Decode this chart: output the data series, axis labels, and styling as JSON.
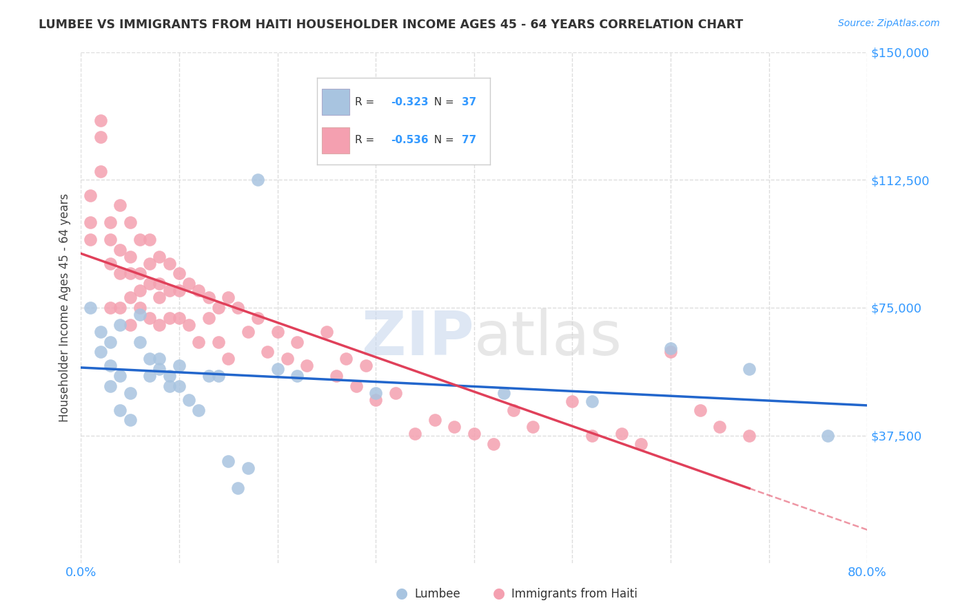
{
  "title": "LUMBEE VS IMMIGRANTS FROM HAITI HOUSEHOLDER INCOME AGES 45 - 64 YEARS CORRELATION CHART",
  "source": "Source: ZipAtlas.com",
  "ylabel": "Householder Income Ages 45 - 64 years",
  "yticks": [
    0,
    37500,
    75000,
    112500,
    150000
  ],
  "ytick_labels": [
    "",
    "$37,500",
    "$75,000",
    "$112,500",
    "$150,000"
  ],
  "xmin": 0.0,
  "xmax": 0.8,
  "ymin": 0,
  "ymax": 150000,
  "lumbee_R": "-0.323",
  "lumbee_N": "37",
  "haiti_R": "-0.536",
  "haiti_N": "77",
  "lumbee_color": "#a8c4e0",
  "haiti_color": "#f4a0b0",
  "lumbee_line_color": "#2266cc",
  "haiti_line_color": "#e0405a",
  "background_color": "#ffffff",
  "grid_color": "#dddddd",
  "watermark_zip": "ZIP",
  "watermark_atlas": "atlas",
  "lumbee_x": [
    0.01,
    0.02,
    0.02,
    0.03,
    0.03,
    0.03,
    0.04,
    0.04,
    0.04,
    0.05,
    0.05,
    0.06,
    0.06,
    0.07,
    0.07,
    0.08,
    0.08,
    0.09,
    0.09,
    0.1,
    0.1,
    0.11,
    0.12,
    0.13,
    0.14,
    0.15,
    0.16,
    0.17,
    0.18,
    0.2,
    0.22,
    0.3,
    0.43,
    0.52,
    0.6,
    0.68,
    0.76
  ],
  "lumbee_y": [
    75000,
    68000,
    62000,
    65000,
    58000,
    52000,
    70000,
    55000,
    45000,
    50000,
    42000,
    73000,
    65000,
    60000,
    55000,
    60000,
    57000,
    55000,
    52000,
    58000,
    52000,
    48000,
    45000,
    55000,
    55000,
    30000,
    22000,
    28000,
    112500,
    57000,
    55000,
    50000,
    50000,
    47500,
    63000,
    57000,
    37500
  ],
  "haiti_x": [
    0.01,
    0.01,
    0.01,
    0.02,
    0.02,
    0.02,
    0.03,
    0.03,
    0.03,
    0.03,
    0.04,
    0.04,
    0.04,
    0.04,
    0.05,
    0.05,
    0.05,
    0.05,
    0.05,
    0.06,
    0.06,
    0.06,
    0.06,
    0.07,
    0.07,
    0.07,
    0.07,
    0.08,
    0.08,
    0.08,
    0.08,
    0.09,
    0.09,
    0.09,
    0.1,
    0.1,
    0.1,
    0.11,
    0.11,
    0.12,
    0.12,
    0.13,
    0.13,
    0.14,
    0.14,
    0.15,
    0.15,
    0.16,
    0.17,
    0.18,
    0.19,
    0.2,
    0.21,
    0.22,
    0.23,
    0.25,
    0.26,
    0.27,
    0.28,
    0.29,
    0.3,
    0.32,
    0.34,
    0.36,
    0.38,
    0.4,
    0.42,
    0.44,
    0.46,
    0.5,
    0.52,
    0.55,
    0.57,
    0.6,
    0.63,
    0.65,
    0.68
  ],
  "haiti_y": [
    100000,
    95000,
    108000,
    130000,
    125000,
    115000,
    100000,
    95000,
    88000,
    75000,
    105000,
    92000,
    85000,
    75000,
    100000,
    90000,
    85000,
    78000,
    70000,
    95000,
    85000,
    80000,
    75000,
    95000,
    88000,
    82000,
    72000,
    90000,
    82000,
    78000,
    70000,
    88000,
    80000,
    72000,
    85000,
    80000,
    72000,
    82000,
    70000,
    80000,
    65000,
    78000,
    72000,
    75000,
    65000,
    78000,
    60000,
    75000,
    68000,
    72000,
    62000,
    68000,
    60000,
    65000,
    58000,
    68000,
    55000,
    60000,
    52000,
    58000,
    48000,
    50000,
    38000,
    42000,
    40000,
    38000,
    35000,
    45000,
    40000,
    47500,
    37500,
    38000,
    35000,
    62000,
    45000,
    40000,
    37500
  ]
}
